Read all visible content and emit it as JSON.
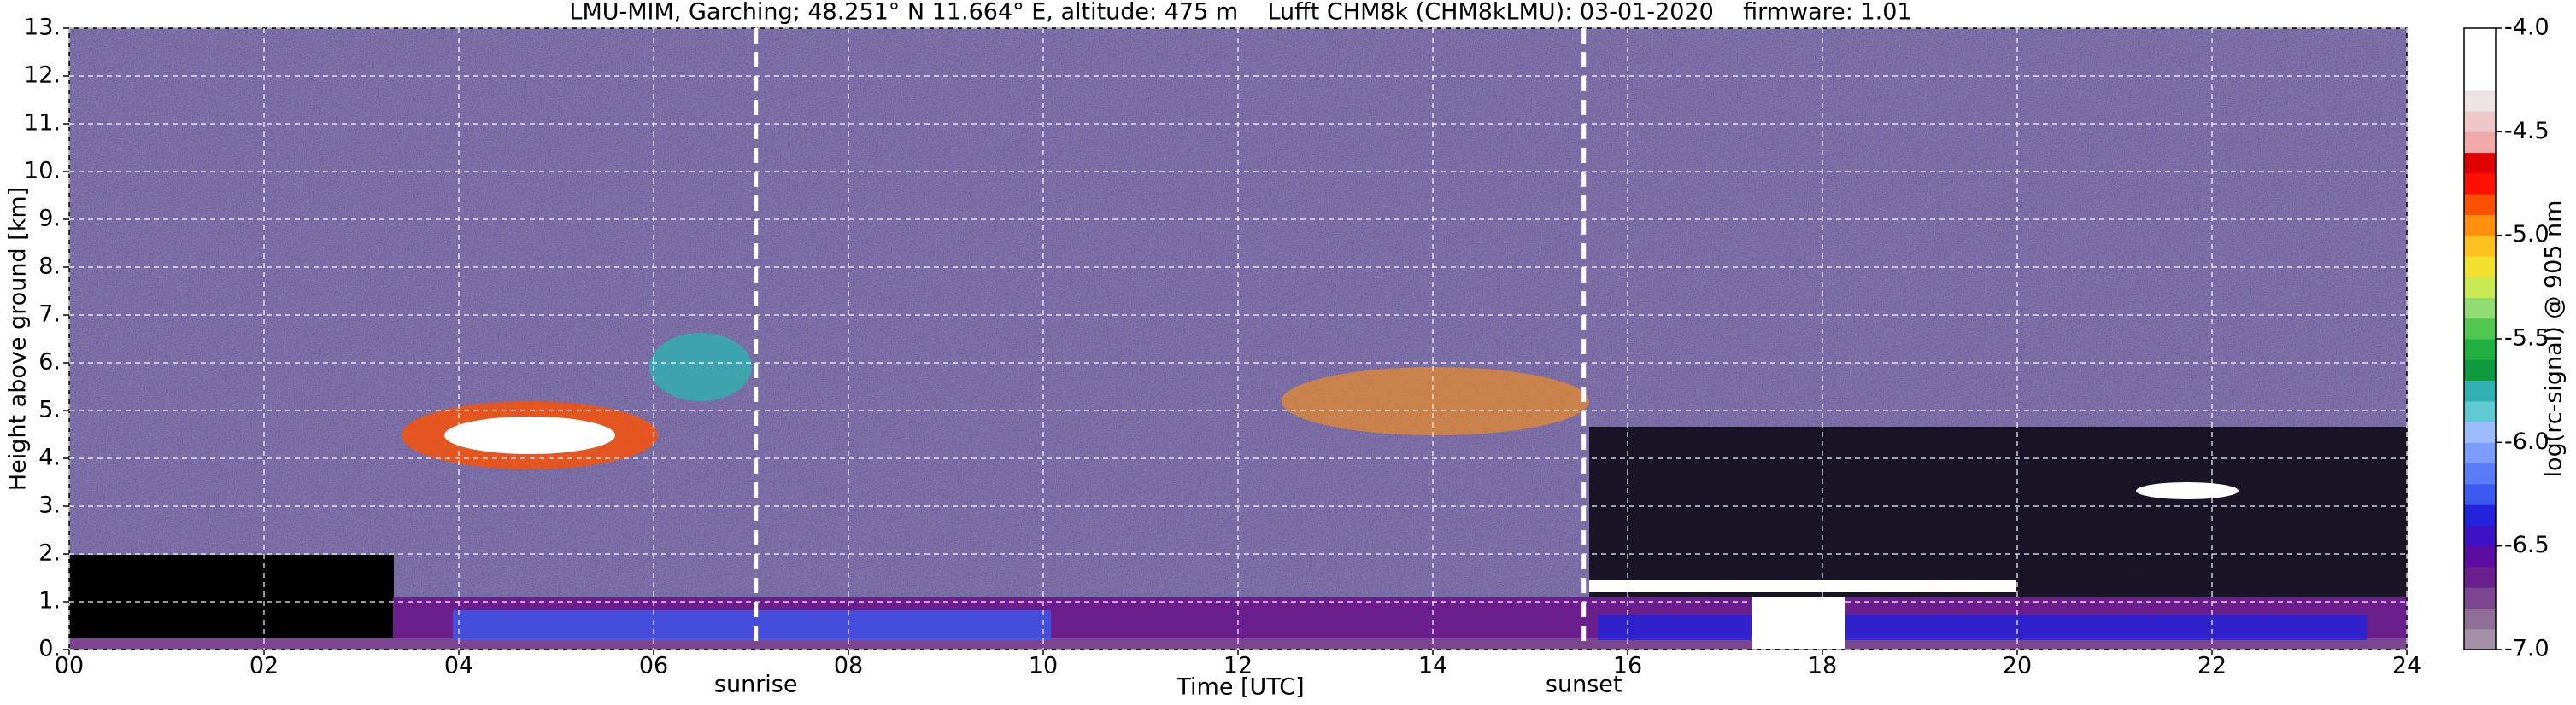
{
  "chart_data": {
    "type": "heatmap",
    "title": "LMU-MIM, Garching; 48.251° N 11.664° E, altitude: 475 m    Lufft CHM8k (CHM8kLMU): 03-01-2020    firmware: 1.01",
    "xlabel": "Time [UTC]",
    "ylabel": "Height above ground [km]",
    "xlim": [
      0,
      24
    ],
    "xticks": [
      {
        "value": 0,
        "label": "00"
      },
      {
        "value": 2,
        "label": "02"
      },
      {
        "value": 4,
        "label": "04"
      },
      {
        "value": 6,
        "label": "06"
      },
      {
        "value": 8,
        "label": "08"
      },
      10,
      12,
      14,
      16,
      18,
      20,
      22,
      24
    ],
    "ylim": [
      0,
      13
    ],
    "yticks": [
      {
        "value": 0,
        "label": "0."
      },
      {
        "value": 1,
        "label": "1."
      },
      {
        "value": 2,
        "label": "2."
      },
      {
        "value": 3,
        "label": "3."
      },
      {
        "value": 4,
        "label": "4."
      },
      {
        "value": 5,
        "label": "5."
      },
      {
        "value": 6,
        "label": "6."
      },
      {
        "value": 7,
        "label": "7."
      },
      {
        "value": 8,
        "label": "8."
      },
      {
        "value": 9,
        "label": "9."
      },
      {
        "value": 10,
        "label": "10."
      },
      {
        "value": 11,
        "label": "11."
      },
      {
        "value": 12,
        "label": "12."
      },
      {
        "value": 13,
        "label": "13."
      }
    ],
    "grid": true,
    "colorbar_label": "log(rc-signal) @ 905 nm",
    "clim": [
      -7,
      -4
    ],
    "cticks": [
      {
        "value": -7,
        "label": "-7.0"
      },
      {
        "value": -6.5,
        "label": "-6.5"
      },
      {
        "value": -6,
        "label": "-6.0"
      },
      {
        "value": -5.5,
        "label": "-5.5"
      },
      {
        "value": -5,
        "label": "-5.0"
      },
      {
        "value": -4.5,
        "label": "-4.5"
      },
      {
        "value": -4,
        "label": "-4.0"
      }
    ],
    "colormap": [
      "#a58fa8",
      "#8f6e98",
      "#7c4590",
      "#6a1f8c",
      "#5c0ca0",
      "#3c10c4",
      "#2222dc",
      "#3c5af0",
      "#5a7cf8",
      "#7c9cff",
      "#9cbcff",
      "#60c8d0",
      "#30b0b0",
      "#109a40",
      "#20b040",
      "#50c850",
      "#90dc70",
      "#c8e850",
      "#f0e030",
      "#ffc020",
      "#ff9010",
      "#ff5000",
      "#ff1000",
      "#e00000",
      "#f0a8a8",
      "#ecc8c8",
      "#ece4e4",
      "#ffffff",
      "#ffffff",
      "#ffffff"
    ],
    "annotations": [
      {
        "text": "sunrise",
        "x": 7.05
      },
      {
        "text": "sunset",
        "x": 15.55
      }
    ]
  }
}
